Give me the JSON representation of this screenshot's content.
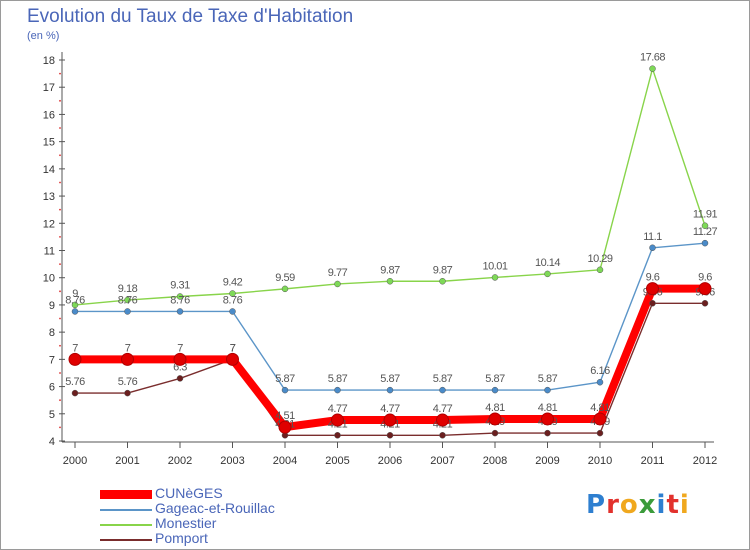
{
  "title": "Evolution du Taux de Taxe d'Habitation",
  "subtitle": "(en %)",
  "logo": {
    "text": "Proxiti",
    "letters": [
      {
        "char": "P",
        "color": "#2e7fd0"
      },
      {
        "char": "r",
        "color": "#e2312d"
      },
      {
        "char": "o",
        "color": "#f0a81e"
      },
      {
        "char": "x",
        "color": "#3b9b3b"
      },
      {
        "char": "i",
        "color": "#2e7fd0"
      },
      {
        "char": "t",
        "color": "#e2312d"
      },
      {
        "char": "i",
        "color": "#f0a81e"
      }
    ]
  },
  "chart_data": {
    "type": "line",
    "title": "Evolution du Taux de Taxe d'Habitation",
    "ylabel": "(en %)",
    "xlabel": "",
    "ylim": [
      4,
      18
    ],
    "yticks": [
      4,
      5,
      6,
      7,
      8,
      9,
      10,
      11,
      12,
      13,
      14,
      15,
      16,
      17,
      18
    ],
    "categories": [
      "2000",
      "2001",
      "2002",
      "2003",
      "2004",
      "2005",
      "2006",
      "2007",
      "2008",
      "2009",
      "2010",
      "2011",
      "2012"
    ],
    "grid": false,
    "legend": "bottom-left",
    "series": [
      {
        "name": "Monestier",
        "color": "#88d44a",
        "point_color": "#7ed957",
        "style": "thin",
        "values": [
          9,
          9.18,
          9.31,
          9.42,
          9.59,
          9.77,
          9.87,
          9.87,
          10.01,
          10.14,
          10.29,
          17.68,
          11.91
        ],
        "labels": [
          "9",
          "9.18",
          "9.31",
          "9.42",
          "9.59",
          "9.77",
          "9.87",
          "9.87",
          "10.01",
          "10.14",
          "10.29",
          "17.68",
          "11.91"
        ]
      },
      {
        "name": "Gageac-et-Rouillac",
        "color": "#5b95c8",
        "point_color": "#4a8bc9",
        "style": "thin",
        "values": [
          8.76,
          8.76,
          8.76,
          8.76,
          5.87,
          5.87,
          5.87,
          5.87,
          5.87,
          5.87,
          6.16,
          11.1,
          11.27
        ],
        "labels": [
          "8.76",
          "8.76",
          "8.76",
          "8.76",
          "5.87",
          "5.87",
          "5.87",
          "5.87",
          "5.87",
          "5.87",
          "6.16",
          "11.1",
          "11.27"
        ]
      },
      {
        "name": "Pomport",
        "color": "#7a2d2d",
        "point_color": "#6b1f1f",
        "style": "thin",
        "values": [
          5.76,
          5.76,
          6.3,
          7,
          4.21,
          4.21,
          4.21,
          4.21,
          4.29,
          4.29,
          4.29,
          9.06,
          9.06
        ],
        "labels": [
          "5.76",
          "5.76",
          "6.3",
          "7",
          "4.21",
          "4.21",
          "4.21",
          "4.21",
          "4.29",
          "4.29",
          "4.29",
          "9.06",
          "9.06"
        ]
      },
      {
        "name": "CUNèGES",
        "color": "#ff0000",
        "point_color": "#e00000",
        "style": "thick",
        "values": [
          7,
          7,
          7,
          7,
          4.51,
          4.77,
          4.77,
          4.77,
          4.81,
          4.81,
          4.81,
          9.6,
          9.6
        ],
        "labels": [
          "7",
          "7",
          "7",
          "7",
          "4.51",
          "4.77",
          "4.77",
          "4.77",
          "4.81",
          "4.81",
          "4.81",
          "9.6",
          "9.6"
        ]
      }
    ],
    "legend_order": [
      "CUNèGES",
      "Gageac-et-Rouillac",
      "Monestier",
      "Pomport"
    ]
  }
}
